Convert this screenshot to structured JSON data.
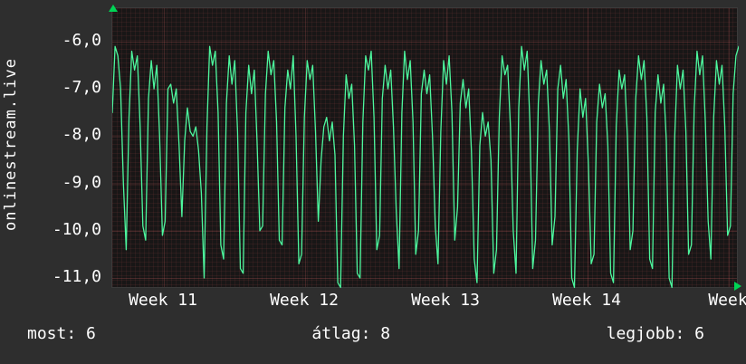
{
  "app": {
    "background": "#2e2e2e",
    "text_color": "#ffffff"
  },
  "sidebar": {
    "vertical_label": "onlinestream.live"
  },
  "footer": {
    "now": "most: 6",
    "avg": "átlag: 8",
    "best": "legjobb: 6"
  },
  "chart_data": {
    "type": "line",
    "title": "",
    "xlabel": "",
    "ylabel": "onlinestream.live",
    "x_tick_labels": [
      "Week 11",
      "Week 12",
      "Week 13",
      "Week 14",
      "Week"
    ],
    "y_ticks": [
      -6,
      -7,
      -8,
      -9,
      -10,
      -11
    ],
    "y_tick_labels": [
      "-6,0",
      "-7,0",
      "-8,0",
      "-9,0",
      "-10,0",
      "-11,0"
    ],
    "ylim": [
      -11.23,
      -5.29
    ],
    "grid": true,
    "legend_position": "none",
    "line_color": "#4df79e",
    "arrow_color": "#00d455",
    "stats": {
      "most": 6,
      "atlag": 8,
      "legjobb": 6
    },
    "series": [
      {
        "name": "onlinestream.live",
        "values": [
          -7.5,
          -6.1,
          -6.3,
          -7.0,
          -9.0,
          -10.4,
          -7.6,
          -6.2,
          -6.6,
          -6.3,
          -7.8,
          -9.9,
          -10.2,
          -7.2,
          -6.4,
          -7.0,
          -6.5,
          -8.0,
          -10.1,
          -9.8,
          -7.0,
          -6.9,
          -7.3,
          -7.0,
          -8.2,
          -9.7,
          -8.1,
          -7.4,
          -7.9,
          -8.0,
          -7.8,
          -8.3,
          -9.2,
          -11.0,
          -7.8,
          -6.1,
          -6.5,
          -6.2,
          -7.5,
          -10.3,
          -10.6,
          -7.3,
          -6.3,
          -6.9,
          -6.4,
          -7.9,
          -10.8,
          -10.9,
          -7.5,
          -6.5,
          -7.1,
          -6.6,
          -8.1,
          -10.0,
          -9.9,
          -7.1,
          -6.2,
          -6.7,
          -6.4,
          -7.7,
          -10.2,
          -10.3,
          -7.4,
          -6.6,
          -7.0,
          -6.3,
          -8.0,
          -10.7,
          -10.5,
          -7.6,
          -6.4,
          -6.8,
          -6.5,
          -7.9,
          -9.8,
          -8.5,
          -7.8,
          -7.6,
          -8.1,
          -7.7,
          -8.4,
          -11.1,
          -11.2,
          -8.0,
          -6.7,
          -7.2,
          -6.9,
          -8.2,
          -10.9,
          -11.0,
          -7.7,
          -6.3,
          -6.6,
          -6.2,
          -7.6,
          -10.4,
          -10.1,
          -7.2,
          -6.5,
          -7.0,
          -6.6,
          -7.8,
          -9.6,
          -10.8,
          -7.5,
          -6.2,
          -6.8,
          -6.4,
          -7.7,
          -10.5,
          -10.0,
          -7.1,
          -6.6,
          -7.1,
          -6.7,
          -8.0,
          -9.9,
          -10.7,
          -7.9,
          -6.4,
          -6.9,
          -6.3,
          -7.5,
          -10.2,
          -9.5,
          -7.3,
          -6.8,
          -7.4,
          -7.0,
          -8.3,
          -10.6,
          -11.1,
          -8.2,
          -7.5,
          -8.0,
          -7.7,
          -8.5,
          -10.9,
          -10.4,
          -7.6,
          -6.3,
          -6.7,
          -6.5,
          -7.8,
          -10.0,
          -10.9,
          -7.4,
          -6.1,
          -6.6,
          -6.2,
          -7.7,
          -10.8,
          -10.2,
          -7.3,
          -6.4,
          -6.9,
          -6.6,
          -7.9,
          -10.3,
          -9.7,
          -7.0,
          -6.5,
          -7.2,
          -6.8,
          -8.1,
          -11.0,
          -11.2,
          -8.3,
          -7.0,
          -7.6,
          -7.2,
          -8.6,
          -10.7,
          -10.5,
          -7.7,
          -6.9,
          -7.4,
          -7.1,
          -8.2,
          -10.9,
          -11.1,
          -7.8,
          -6.6,
          -7.0,
          -6.7,
          -8.0,
          -10.4,
          -10.0,
          -7.2,
          -6.3,
          -6.8,
          -6.4,
          -7.6,
          -10.6,
          -10.8,
          -7.5,
          -6.7,
          -7.3,
          -6.9,
          -8.1,
          -11.0,
          -11.2,
          -8.0,
          -6.5,
          -7.0,
          -6.6,
          -7.9,
          -10.5,
          -10.3,
          -7.4,
          -6.2,
          -6.7,
          -6.3,
          -7.7,
          -9.8,
          -10.6,
          -7.6,
          -6.4,
          -6.9,
          -6.5,
          -7.8,
          -10.1,
          -9.9,
          -7.1,
          -6.3,
          -6.1
        ]
      }
    ]
  }
}
